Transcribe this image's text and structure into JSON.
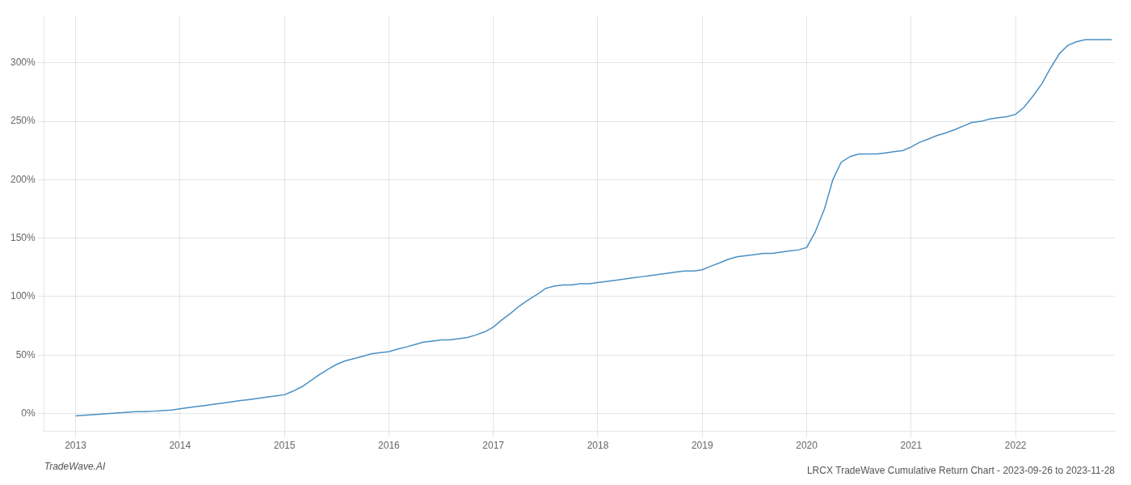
{
  "chart_data": {
    "type": "line",
    "title": "LRCX TradeWave Cumulative Return Chart - 2023-09-26 to 2023-11-28",
    "annotations": [
      "TradeWave.AI"
    ],
    "color": "#4a90c4",
    "grid": true,
    "x": [
      2013.0,
      2013.08,
      2013.17,
      2013.25,
      2013.33,
      2013.42,
      2013.5,
      2013.58,
      2013.67,
      2013.75,
      2013.83,
      2013.92,
      2014.0,
      2014.08,
      2014.17,
      2014.25,
      2014.33,
      2014.42,
      2014.5,
      2014.58,
      2014.67,
      2014.75,
      2014.83,
      2014.92,
      2015.0,
      2015.08,
      2015.17,
      2015.25,
      2015.33,
      2015.42,
      2015.5,
      2015.58,
      2015.67,
      2015.75,
      2015.83,
      2015.92,
      2016.0,
      2016.08,
      2016.17,
      2016.25,
      2016.33,
      2016.42,
      2016.5,
      2016.58,
      2016.67,
      2016.75,
      2016.83,
      2016.92,
      2017.0,
      2017.08,
      2017.17,
      2017.25,
      2017.33,
      2017.42,
      2017.5,
      2017.58,
      2017.67,
      2017.75,
      2017.83,
      2017.92,
      2018.0,
      2018.08,
      2018.17,
      2018.25,
      2018.33,
      2018.42,
      2018.5,
      2018.58,
      2018.67,
      2018.75,
      2018.83,
      2018.92,
      2019.0,
      2019.08,
      2019.17,
      2019.25,
      2019.33,
      2019.42,
      2019.5,
      2019.58,
      2019.67,
      2019.75,
      2019.83,
      2019.92,
      2020.0,
      2020.08,
      2020.17,
      2020.25,
      2020.33,
      2020.42,
      2020.5,
      2020.58,
      2020.67,
      2020.75,
      2020.83,
      2020.92,
      2021.0,
      2021.08,
      2021.17,
      2021.25,
      2021.33,
      2021.42,
      2021.5,
      2021.58,
      2021.67,
      2021.75,
      2021.83,
      2021.92,
      2022.0,
      2022.08,
      2022.17,
      2022.25,
      2022.33,
      2022.42,
      2022.5,
      2022.58,
      2022.67,
      2022.75,
      2022.83,
      2022.92
    ],
    "values": [
      -2,
      -1.5,
      -1,
      -0.5,
      0,
      0.5,
      1,
      1.5,
      1.5,
      2,
      2.5,
      3,
      4,
      5,
      6,
      7,
      8,
      9,
      10,
      11,
      12,
      13,
      14,
      15,
      16,
      19,
      23,
      28,
      33,
      38,
      42,
      45,
      47,
      49,
      51,
      52,
      53,
      55,
      57,
      59,
      61,
      62,
      63,
      63,
      64,
      65,
      67,
      70,
      74,
      80,
      86,
      92,
      97,
      102,
      107,
      109,
      110,
      110,
      111,
      111,
      112,
      113,
      114,
      115,
      116,
      117,
      118,
      119,
      120,
      121,
      122,
      122,
      123,
      126,
      129,
      132,
      134,
      135,
      136,
      137,
      137,
      138,
      139,
      140,
      142,
      155,
      175,
      200,
      215,
      220,
      222,
      222,
      222,
      223,
      224,
      225,
      228,
      232,
      235,
      238,
      240,
      243,
      246,
      249,
      250,
      252,
      253,
      254,
      256,
      262,
      272,
      282,
      295,
      308,
      315,
      318,
      320,
      320,
      320,
      320
    ],
    "xlim": [
      2012.7,
      2022.95
    ],
    "xticks": [
      2013,
      2014,
      2015,
      2016,
      2017,
      2018,
      2019,
      2020,
      2021,
      2022
    ],
    "ylim": [
      -15,
      340
    ],
    "yticks": [
      {
        "value": 0,
        "label": "0%"
      },
      {
        "value": 50,
        "label": "50%"
      },
      {
        "value": 100,
        "label": "100%"
      },
      {
        "value": 150,
        "label": "150%"
      },
      {
        "value": 200,
        "label": "200%"
      },
      {
        "value": 250,
        "label": "250%"
      },
      {
        "value": 300,
        "label": "300%"
      }
    ]
  }
}
